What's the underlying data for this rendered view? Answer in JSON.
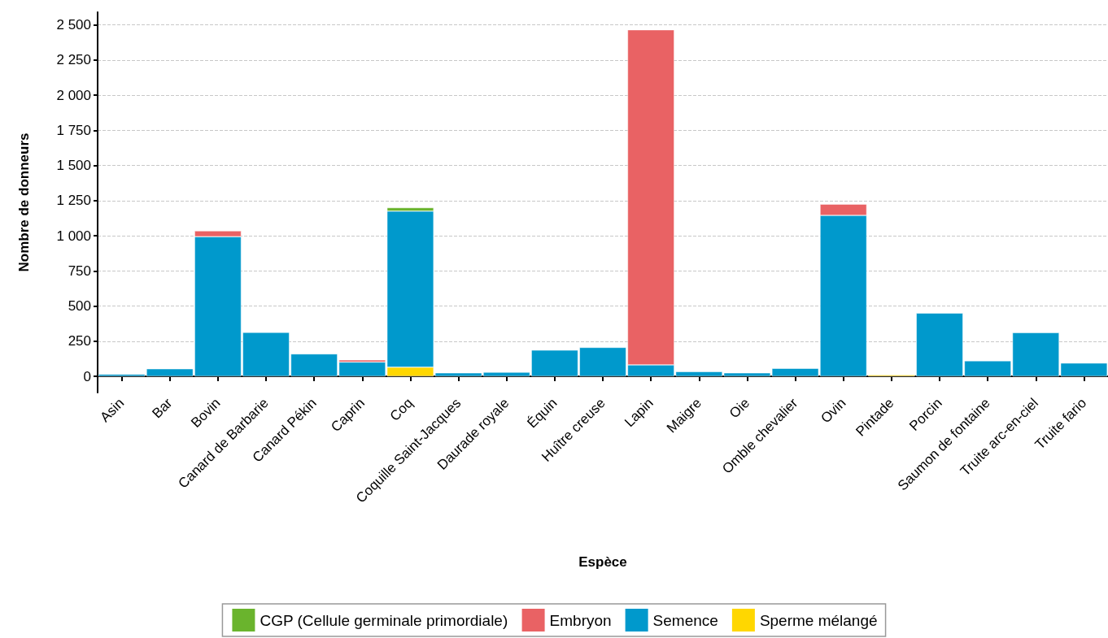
{
  "chart_data": {
    "type": "bar",
    "stacked": true,
    "xlabel": "Espèce",
    "ylabel": "Nombre de donneurs",
    "categories": [
      "Asin",
      "Bar",
      "Bovin",
      "Canard de Barbarie",
      "Canard Pékin",
      "Caprin",
      "Coq",
      "Coquille Saint-Jacques",
      "Daurade royale",
      "Équin",
      "Huître creuse",
      "Lapin",
      "Maigre",
      "Oie",
      "Omble chevalier",
      "Ovin",
      "Pintade",
      "Porcin",
      "Saumon de fontaine",
      "Truite arc-en-ciel",
      "Truite fario"
    ],
    "series": [
      {
        "name": "Sperme mélangé",
        "color": "#ffd700",
        "values": [
          null,
          null,
          null,
          null,
          null,
          null,
          65,
          null,
          null,
          null,
          null,
          null,
          null,
          null,
          null,
          null,
          10,
          null,
          null,
          null,
          null
        ]
      },
      {
        "name": "Semence",
        "color": "#0099cc",
        "values": [
          15,
          54,
          994,
          313,
          160,
          102,
          1110,
          25,
          30,
          187,
          206,
          82,
          34,
          25,
          57,
          1145,
          null,
          450,
          111,
          311,
          95
        ]
      },
      {
        "name": "Embryon",
        "color": "#e96264",
        "values": [
          null,
          null,
          41,
          null,
          null,
          15,
          null,
          null,
          null,
          null,
          null,
          2383,
          null,
          null,
          null,
          80,
          null,
          null,
          null,
          null,
          null
        ]
      },
      {
        "name": "CGP (Cellule germinale primordiale)",
        "color": "#6ab42d",
        "values": [
          null,
          null,
          null,
          null,
          null,
          null,
          25,
          null,
          null,
          null,
          null,
          null,
          null,
          null,
          null,
          null,
          null,
          null,
          null,
          null,
          null
        ]
      }
    ],
    "ylim": [
      -115,
      2590
    ],
    "yticks": [
      0,
      250,
      500,
      750,
      {
        "value": 1000,
        "label": "1 000"
      },
      {
        "value": 1250,
        "label": "1 250"
      },
      {
        "value": 1500,
        "label": "1 500"
      },
      {
        "value": 1750,
        "label": "1 750"
      },
      {
        "value": 2000,
        "label": "2 000"
      },
      {
        "value": 2250,
        "label": "2 250"
      },
      {
        "value": 2500,
        "label": "2 500"
      }
    ],
    "grid": "y",
    "legend": "bottom"
  }
}
